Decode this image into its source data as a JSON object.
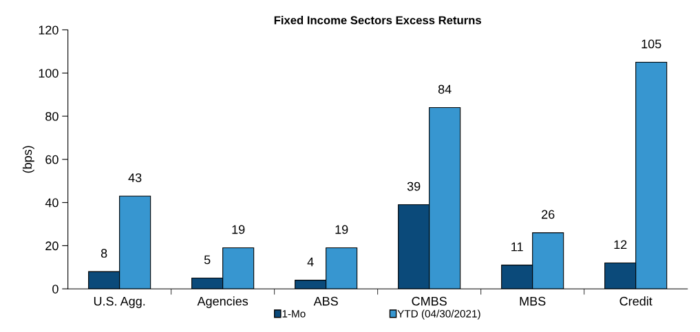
{
  "chart_data": {
    "type": "bar",
    "title": "Fixed Income Sectors Excess Returns",
    "ylabel": "(bps)",
    "categories": [
      "U.S. Agg.",
      "Agencies",
      "ABS",
      "CMBS",
      "MBS",
      "Credit"
    ],
    "series": [
      {
        "name": "1-Mo",
        "color": "#0b4a7a",
        "values": [
          8,
          5,
          4,
          39,
          11,
          12
        ]
      },
      {
        "name": "YTD (04/30/2021)",
        "color": "#3796d0",
        "values": [
          43,
          19,
          19,
          84,
          26,
          105
        ]
      }
    ],
    "ylim": [
      0,
      120
    ],
    "yticks": [
      0,
      20,
      40,
      60,
      80,
      100,
      120
    ],
    "data_labels": true,
    "legend": "bottom",
    "grid": false
  }
}
